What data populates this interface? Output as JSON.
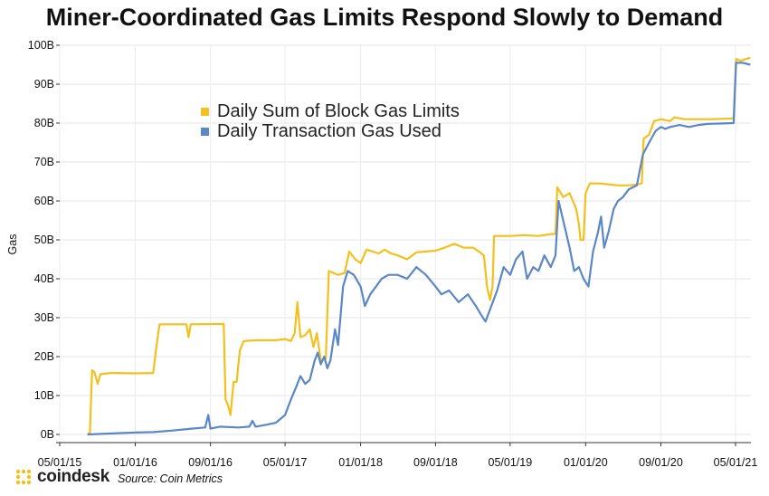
{
  "chart_data": {
    "type": "line",
    "title": "Miner-Coordinated Gas Limits Respond Slowly to Demand",
    "ylabel": "Gas",
    "ylim": [
      0,
      100
    ],
    "y_ticks": [
      "0B",
      "10B",
      "20B",
      "30B",
      "40B",
      "50B",
      "60B",
      "70B",
      "80B",
      "90B",
      "100B"
    ],
    "x_range": [
      "2015-05-01",
      "2021-06-20"
    ],
    "x_ticks": [
      {
        "label": "05/01/15",
        "date": "2015-05-01"
      },
      {
        "label": "01/01/16",
        "date": "2016-01-01"
      },
      {
        "label": "09/01/16",
        "date": "2016-09-01"
      },
      {
        "label": "05/01/17",
        "date": "2017-05-01"
      },
      {
        "label": "01/01/18",
        "date": "2018-01-01"
      },
      {
        "label": "09/01/18",
        "date": "2018-09-01"
      },
      {
        "label": "05/01/19",
        "date": "2019-05-01"
      },
      {
        "label": "01/01/20",
        "date": "2020-01-01"
      },
      {
        "label": "09/01/20",
        "date": "2020-09-01"
      },
      {
        "label": "05/01/21",
        "date": "2021-05-01"
      }
    ],
    "legend_position": "upper-left",
    "series": [
      {
        "name": "Daily Sum of Block Gas Limits",
        "color": "#f4c01e",
        "points": [
          [
            "2015-07-30",
            0
          ],
          [
            "2015-08-07",
            0.5
          ],
          [
            "2015-08-14",
            16.5
          ],
          [
            "2015-08-22",
            16
          ],
          [
            "2015-09-01",
            13
          ],
          [
            "2015-09-10",
            15.5
          ],
          [
            "2015-10-15",
            15.8
          ],
          [
            "2016-01-01",
            15.7
          ],
          [
            "2016-02-28",
            15.8
          ],
          [
            "2016-03-12",
            24
          ],
          [
            "2016-03-20",
            28.3
          ],
          [
            "2016-06-15",
            28.3
          ],
          [
            "2016-06-22",
            25
          ],
          [
            "2016-06-29",
            28.3
          ],
          [
            "2016-10-14",
            28.4
          ],
          [
            "2016-10-20",
            9
          ],
          [
            "2016-10-28",
            7.5
          ],
          [
            "2016-11-05",
            5
          ],
          [
            "2016-11-15",
            13.5
          ],
          [
            "2016-11-25",
            13.5
          ],
          [
            "2016-12-05",
            21.5
          ],
          [
            "2016-12-18",
            24
          ],
          [
            "2017-02-01",
            24.2
          ],
          [
            "2017-04-01",
            24.2
          ],
          [
            "2017-05-01",
            24.5
          ],
          [
            "2017-05-20",
            24
          ],
          [
            "2017-06-01",
            26
          ],
          [
            "2017-06-10",
            34
          ],
          [
            "2017-06-20",
            25
          ],
          [
            "2017-07-05",
            25.5
          ],
          [
            "2017-07-20",
            27
          ],
          [
            "2017-08-01",
            22.5
          ],
          [
            "2017-08-12",
            26
          ],
          [
            "2017-08-25",
            19
          ],
          [
            "2017-09-10",
            19.5
          ],
          [
            "2017-09-20",
            42
          ],
          [
            "2017-10-20",
            41
          ],
          [
            "2017-11-10",
            41.5
          ],
          [
            "2017-11-25",
            47
          ],
          [
            "2017-12-15",
            45
          ],
          [
            "2018-01-01",
            44
          ],
          [
            "2018-01-20",
            47.5
          ],
          [
            "2018-03-01",
            46.5
          ],
          [
            "2018-03-20",
            47.5
          ],
          [
            "2018-04-10",
            46.5
          ],
          [
            "2018-05-01",
            46
          ],
          [
            "2018-06-01",
            45
          ],
          [
            "2018-07-01",
            46.8
          ],
          [
            "2018-08-01",
            47
          ],
          [
            "2018-09-01",
            47.2
          ],
          [
            "2018-10-01",
            48
          ],
          [
            "2018-11-01",
            49
          ],
          [
            "2018-12-01",
            48
          ],
          [
            "2019-01-01",
            48
          ],
          [
            "2019-01-20",
            47
          ],
          [
            "2019-02-05",
            46
          ],
          [
            "2019-02-15",
            38
          ],
          [
            "2019-02-25",
            34.5
          ],
          [
            "2019-03-05",
            38
          ],
          [
            "2019-03-10",
            51
          ],
          [
            "2019-05-01",
            51
          ],
          [
            "2019-06-15",
            51.2
          ],
          [
            "2019-08-01",
            51
          ],
          [
            "2019-09-15",
            51.5
          ],
          [
            "2019-09-25",
            51.5
          ],
          [
            "2019-10-01",
            63.5
          ],
          [
            "2019-10-20",
            61
          ],
          [
            "2019-11-10",
            62
          ],
          [
            "2019-12-01",
            58
          ],
          [
            "2019-12-10",
            54
          ],
          [
            "2019-12-15",
            50
          ],
          [
            "2019-12-25",
            50
          ],
          [
            "2020-01-01",
            62
          ],
          [
            "2020-01-15",
            64.5
          ],
          [
            "2020-02-15",
            64.5
          ],
          [
            "2020-04-15",
            64
          ],
          [
            "2020-05-20",
            64
          ],
          [
            "2020-06-15",
            64.2
          ],
          [
            "2020-07-01",
            64.5
          ],
          [
            "2020-07-07",
            76
          ],
          [
            "2020-07-25",
            77
          ],
          [
            "2020-08-10",
            80.5
          ],
          [
            "2020-09-01",
            81
          ],
          [
            "2020-10-01",
            80.5
          ],
          [
            "2020-10-15",
            81.5
          ],
          [
            "2020-11-15",
            81
          ],
          [
            "2021-01-01",
            81
          ],
          [
            "2021-02-15",
            81
          ],
          [
            "2021-04-25",
            81.2
          ],
          [
            "2021-05-03",
            96.5
          ],
          [
            "2021-05-18",
            96
          ],
          [
            "2021-06-05",
            96.5
          ],
          [
            "2021-06-18",
            96.8
          ]
        ]
      },
      {
        "name": "Daily Transaction Gas Used",
        "color": "#5b86c8",
        "points": [
          [
            "2015-07-30",
            0
          ],
          [
            "2015-10-01",
            0.2
          ],
          [
            "2016-01-01",
            0.5
          ],
          [
            "2016-03-01",
            0.6
          ],
          [
            "2016-05-01",
            1.0
          ],
          [
            "2016-07-01",
            1.5
          ],
          [
            "2016-08-15",
            1.8
          ],
          [
            "2016-08-25",
            5
          ],
          [
            "2016-09-01",
            1.5
          ],
          [
            "2016-10-01",
            2
          ],
          [
            "2016-12-01",
            1.8
          ],
          [
            "2017-01-05",
            2
          ],
          [
            "2017-01-15",
            3.5
          ],
          [
            "2017-01-25",
            2
          ],
          [
            "2017-03-01",
            2.5
          ],
          [
            "2017-04-01",
            3
          ],
          [
            "2017-05-01",
            5
          ],
          [
            "2017-05-20",
            9
          ],
          [
            "2017-06-05",
            12
          ],
          [
            "2017-06-20",
            15
          ],
          [
            "2017-07-05",
            13
          ],
          [
            "2017-07-20",
            14
          ],
          [
            "2017-08-05",
            19
          ],
          [
            "2017-08-15",
            21
          ],
          [
            "2017-08-25",
            18
          ],
          [
            "2017-09-05",
            20
          ],
          [
            "2017-09-15",
            17
          ],
          [
            "2017-09-25",
            19
          ],
          [
            "2017-10-10",
            27
          ],
          [
            "2017-10-20",
            23
          ],
          [
            "2017-11-05",
            38
          ],
          [
            "2017-11-20",
            42
          ],
          [
            "2017-12-10",
            41
          ],
          [
            "2018-01-01",
            38
          ],
          [
            "2018-01-15",
            33
          ],
          [
            "2018-02-01",
            36
          ],
          [
            "2018-02-20",
            38
          ],
          [
            "2018-03-10",
            40
          ],
          [
            "2018-04-01",
            41
          ],
          [
            "2018-05-01",
            41
          ],
          [
            "2018-06-01",
            40
          ],
          [
            "2018-07-01",
            43
          ],
          [
            "2018-08-01",
            41
          ],
          [
            "2018-09-01",
            38
          ],
          [
            "2018-09-20",
            36
          ],
          [
            "2018-10-15",
            37
          ],
          [
            "2018-11-15",
            34
          ],
          [
            "2018-12-15",
            36
          ],
          [
            "2019-01-10",
            33
          ],
          [
            "2019-01-25",
            31
          ],
          [
            "2019-02-10",
            29
          ],
          [
            "2019-03-01",
            33
          ],
          [
            "2019-03-20",
            37
          ],
          [
            "2019-04-10",
            43
          ],
          [
            "2019-05-01",
            41
          ],
          [
            "2019-05-20",
            45
          ],
          [
            "2019-06-10",
            47
          ],
          [
            "2019-06-25",
            40
          ],
          [
            "2019-07-15",
            43
          ],
          [
            "2019-08-01",
            42
          ],
          [
            "2019-08-20",
            46
          ],
          [
            "2019-09-10",
            43
          ],
          [
            "2019-09-25",
            46
          ],
          [
            "2019-10-05",
            60
          ],
          [
            "2019-10-20",
            55
          ],
          [
            "2019-11-10",
            48
          ],
          [
            "2019-11-25",
            42
          ],
          [
            "2019-12-10",
            43
          ],
          [
            "2019-12-25",
            40
          ],
          [
            "2020-01-10",
            38
          ],
          [
            "2020-01-25",
            47
          ],
          [
            "2020-02-10",
            52
          ],
          [
            "2020-02-20",
            56
          ],
          [
            "2020-03-01",
            48
          ],
          [
            "2020-03-15",
            52
          ],
          [
            "2020-04-01",
            58
          ],
          [
            "2020-04-15",
            60
          ],
          [
            "2020-05-01",
            61
          ],
          [
            "2020-05-20",
            63
          ],
          [
            "2020-06-15",
            64
          ],
          [
            "2020-07-05",
            72
          ],
          [
            "2020-07-25",
            75
          ],
          [
            "2020-08-15",
            78
          ],
          [
            "2020-09-01",
            79
          ],
          [
            "2020-09-15",
            78.5
          ],
          [
            "2020-10-01",
            79
          ],
          [
            "2020-11-01",
            79.5
          ],
          [
            "2020-12-01",
            79
          ],
          [
            "2021-01-01",
            79.5
          ],
          [
            "2021-02-01",
            79.8
          ],
          [
            "2021-04-25",
            80
          ],
          [
            "2021-05-03",
            95.5
          ],
          [
            "2021-05-25",
            95.5
          ],
          [
            "2021-06-18",
            95
          ]
        ]
      }
    ]
  },
  "footer": {
    "brand": "coindesk",
    "source": "Source: Coin Metrics"
  }
}
